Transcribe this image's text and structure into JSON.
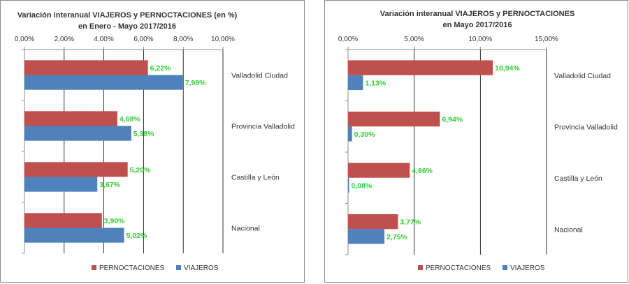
{
  "chart_data": [
    {
      "type": "bar",
      "orientation": "horizontal",
      "title": "Variación interanual VIAJEROS y PERNOCTACIONES (en %)",
      "subtitle": "en Enero - Mayo 2017/2016",
      "categories": [
        "Valladolid Ciudad",
        "Provincia Valladolid",
        "Castilla y León",
        "Nacional"
      ],
      "series": [
        {
          "name": "PERNOCTACIONES",
          "color": "#c0504d",
          "values": [
            6.22,
            4.68,
            5.2,
            3.9
          ],
          "labels": [
            "6,22%",
            "4,68%",
            "5,20%",
            "3,90%"
          ]
        },
        {
          "name": "VIAJEROS",
          "color": "#4f81bd",
          "values": [
            7.98,
            5.38,
            3.67,
            5.02
          ],
          "labels": [
            "7,98%",
            "5,38%",
            "3,67%",
            "5,02%"
          ]
        }
      ],
      "xlim": [
        0,
        10
      ],
      "xticks": [
        0,
        2,
        4,
        6,
        8,
        10
      ],
      "xtick_labels": [
        "0,00%",
        "2,00%",
        "4,00%",
        "6,00%",
        "8,00%",
        "10,00%"
      ],
      "x_axis_position": "top",
      "grid": true,
      "legend_position": "bottom",
      "data_label_color": "#33cc33"
    },
    {
      "type": "bar",
      "orientation": "horizontal",
      "title": "Variación interanual VIAJEROS y PERNOCTACIONES",
      "subtitle": "en Mayo 2017/2016",
      "categories": [
        "Valladolid Ciudad",
        "Provincia Valladolid",
        "Castilla y León",
        "Nacional"
      ],
      "series": [
        {
          "name": "PERNOCTACIONES",
          "color": "#c0504d",
          "values": [
            10.94,
            6.94,
            4.66,
            3.77
          ],
          "labels": [
            "10,94%",
            "6,94%",
            "4,66%",
            "3,77%"
          ]
        },
        {
          "name": "VIAJEROS",
          "color": "#4f81bd",
          "values": [
            1.13,
            0.3,
            0.08,
            2.75
          ],
          "labels": [
            "1,13%",
            "0,30%",
            "0,08%",
            "2,75%"
          ]
        }
      ],
      "xlim": [
        0,
        15
      ],
      "xticks": [
        0,
        5,
        10,
        15
      ],
      "xtick_labels": [
        "0,00%",
        "5,00%",
        "10,00%",
        "15,00%"
      ],
      "x_axis_position": "top",
      "grid": true,
      "legend_position": "bottom",
      "data_label_color": "#33cc33"
    }
  ]
}
